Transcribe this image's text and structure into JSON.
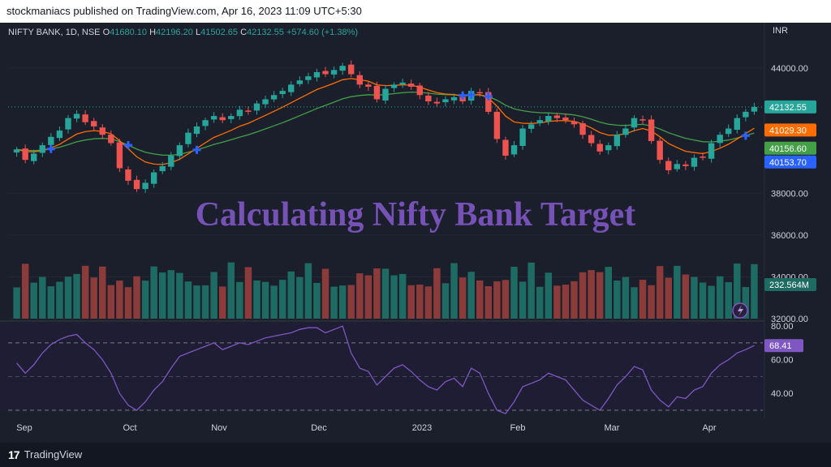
{
  "header": {
    "published_text": "stockmaniacs published on TradingView.com, Apr 16, 2023 11:09 UTC+5:30"
  },
  "legend": {
    "symbol": "NIFTY BANK, 1D, NSE",
    "o_label": "O",
    "o_value": "41680.10",
    "h_label": "H",
    "h_value": "42196.20",
    "l_label": "L",
    "l_value": "41502.65",
    "c_label": "C",
    "c_value": "42132.55",
    "change": "+574.60 (+1.38%)"
  },
  "currency": "INR",
  "watermark": "Calculating Nifty Bank Target",
  "footer": {
    "brand": "TradingView"
  },
  "colors": {
    "up": "#26a69a",
    "down": "#ef5350",
    "ema_fast": "#ff6d00",
    "ema_slow": "#43a047",
    "rsi": "#7e57c2",
    "signal_cross": "#2962ff"
  },
  "chart_data": [
    {
      "type": "candlestick",
      "title": "NIFTY BANK, 1D, NSE",
      "ylim": [
        32000,
        45000
      ],
      "y_ticks": [
        "44000.00",
        "38000.00",
        "36000.00",
        "34000.00",
        "32000.00"
      ],
      "x_ticks": [
        "Sep",
        "Oct",
        "Nov",
        "Dec",
        "2023",
        "Feb",
        "Mar",
        "Apr"
      ],
      "close_series": [
        40100,
        39600,
        39900,
        40300,
        40700,
        41000,
        41600,
        41800,
        41400,
        41200,
        40800,
        40400,
        39200,
        38600,
        38200,
        38500,
        39000,
        39300,
        39800,
        40300,
        40900,
        41200,
        41500,
        41700,
        41500,
        41700,
        42000,
        41900,
        42300,
        42500,
        42700,
        42900,
        43200,
        43400,
        43600,
        43800,
        43700,
        43900,
        44100,
        43700,
        43200,
        43100,
        42500,
        43000,
        43200,
        43300,
        43100,
        42700,
        42400,
        42300,
        42500,
        42600,
        42400,
        42900,
        42800,
        41900,
        40600,
        39800,
        40300,
        41100,
        41300,
        41500,
        41700,
        41600,
        41500,
        41300,
        40800,
        40400,
        40000,
        40300,
        40800,
        41100,
        41600,
        41500,
        40500,
        39600,
        39100,
        39400,
        39300,
        39700,
        39700,
        40400,
        40800,
        41100,
        41600,
        41900,
        42132.55
      ],
      "ema_fast_last": "41029.30",
      "ema_slow_last": "40156.60",
      "signal_last": "40153.70",
      "price_last": "42132.55",
      "volume_last": "232.564M",
      "series": [
        {
          "name": "NIFTY BANK",
          "type": "candles"
        }
      ]
    },
    {
      "type": "line",
      "ylim": [
        30,
        82
      ],
      "y_ticks": [
        "80.00",
        "60.00",
        "40.00"
      ],
      "levels": [
        70,
        50,
        30
      ],
      "last_value": "68.41",
      "values": [
        58,
        52,
        57,
        64,
        69,
        72,
        74,
        75,
        70,
        66,
        60,
        52,
        40,
        33,
        30,
        35,
        42,
        47,
        55,
        62,
        64,
        66,
        68,
        70,
        66,
        68,
        70,
        69,
        71,
        73,
        74,
        75,
        76,
        78,
        79,
        79,
        76,
        78,
        80,
        64,
        55,
        53,
        45,
        50,
        55,
        57,
        53,
        48,
        44,
        42,
        47,
        49,
        44,
        55,
        52,
        40,
        30,
        28,
        35,
        44,
        46,
        48,
        52,
        50,
        48,
        42,
        36,
        33,
        30,
        37,
        45,
        50,
        56,
        54,
        42,
        36,
        32,
        38,
        37,
        42,
        44,
        52,
        57,
        60,
        64,
        66,
        68.41
      ]
    }
  ]
}
